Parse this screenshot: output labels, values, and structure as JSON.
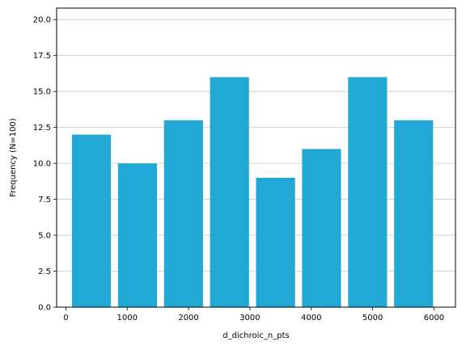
{
  "chart_data": {
    "type": "bar",
    "xlabel": "d_dichroic_n_pts",
    "ylabel": "Frequency (N=100)",
    "xlim": [
      -150,
      6350
    ],
    "ylim": [
      0,
      20.8
    ],
    "xticks": [
      0,
      1000,
      2000,
      3000,
      4000,
      5000,
      6000
    ],
    "xtick_labels": [
      "0",
      "1000",
      "2000",
      "3000",
      "4000",
      "5000",
      "6000"
    ],
    "yticks": [
      0,
      2.5,
      5,
      7.5,
      10,
      12.5,
      15,
      17.5,
      20
    ],
    "ytick_labels": [
      "0.0",
      "2.5",
      "5.0",
      "7.5",
      "10.0",
      "12.5",
      "15.0",
      "17.5",
      "20.0"
    ],
    "bins": [
      {
        "start": 100,
        "end": 735,
        "value": 12
      },
      {
        "start": 850,
        "end": 1485,
        "value": 10
      },
      {
        "start": 1600,
        "end": 2235,
        "value": 13
      },
      {
        "start": 2350,
        "end": 2985,
        "value": 16
      },
      {
        "start": 3100,
        "end": 3735,
        "value": 9
      },
      {
        "start": 3850,
        "end": 4485,
        "value": 11
      },
      {
        "start": 4600,
        "end": 5235,
        "value": 16
      },
      {
        "start": 5350,
        "end": 5985,
        "value": 13
      }
    ],
    "bar_color": "#22a8d4",
    "grid": "horizontal",
    "grid_color": "#c8c8c8",
    "legend": "none"
  }
}
